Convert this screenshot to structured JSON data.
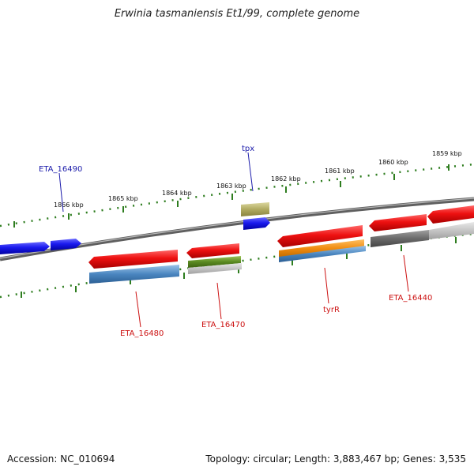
{
  "title": "Erwinia tasmaniensis Et1/99, complete genome",
  "footer": {
    "accession": "Accession: NC_010694",
    "summary": "Topology: circular; Length: 3,883,467 bp; Genes: 3,535"
  },
  "colors": {
    "backbone": "#7a7a7a",
    "ruler": "#2e7d1f",
    "gene_forward": "#1a1aee",
    "gene_reverse": "#ee1111",
    "label_blue": "#1a1aaa",
    "label_red": "#cc1111"
  },
  "scale_labels": [
    "1866 kbp",
    "1865 kbp",
    "1864 kbp",
    "1863 kbp",
    "1862 kbp",
    "1861 kbp",
    "1860 kbp",
    "1859 kbp"
  ],
  "gene_labels": [
    {
      "text": "tpx",
      "color": "blue"
    },
    {
      "text": "ETA_16490",
      "color": "blue"
    },
    {
      "text": "ETA_16480",
      "color": "red"
    },
    {
      "text": "ETA_16470",
      "color": "red"
    },
    {
      "text": "tyrR",
      "color": "red"
    },
    {
      "text": "ETA_16440",
      "color": "red"
    }
  ]
}
